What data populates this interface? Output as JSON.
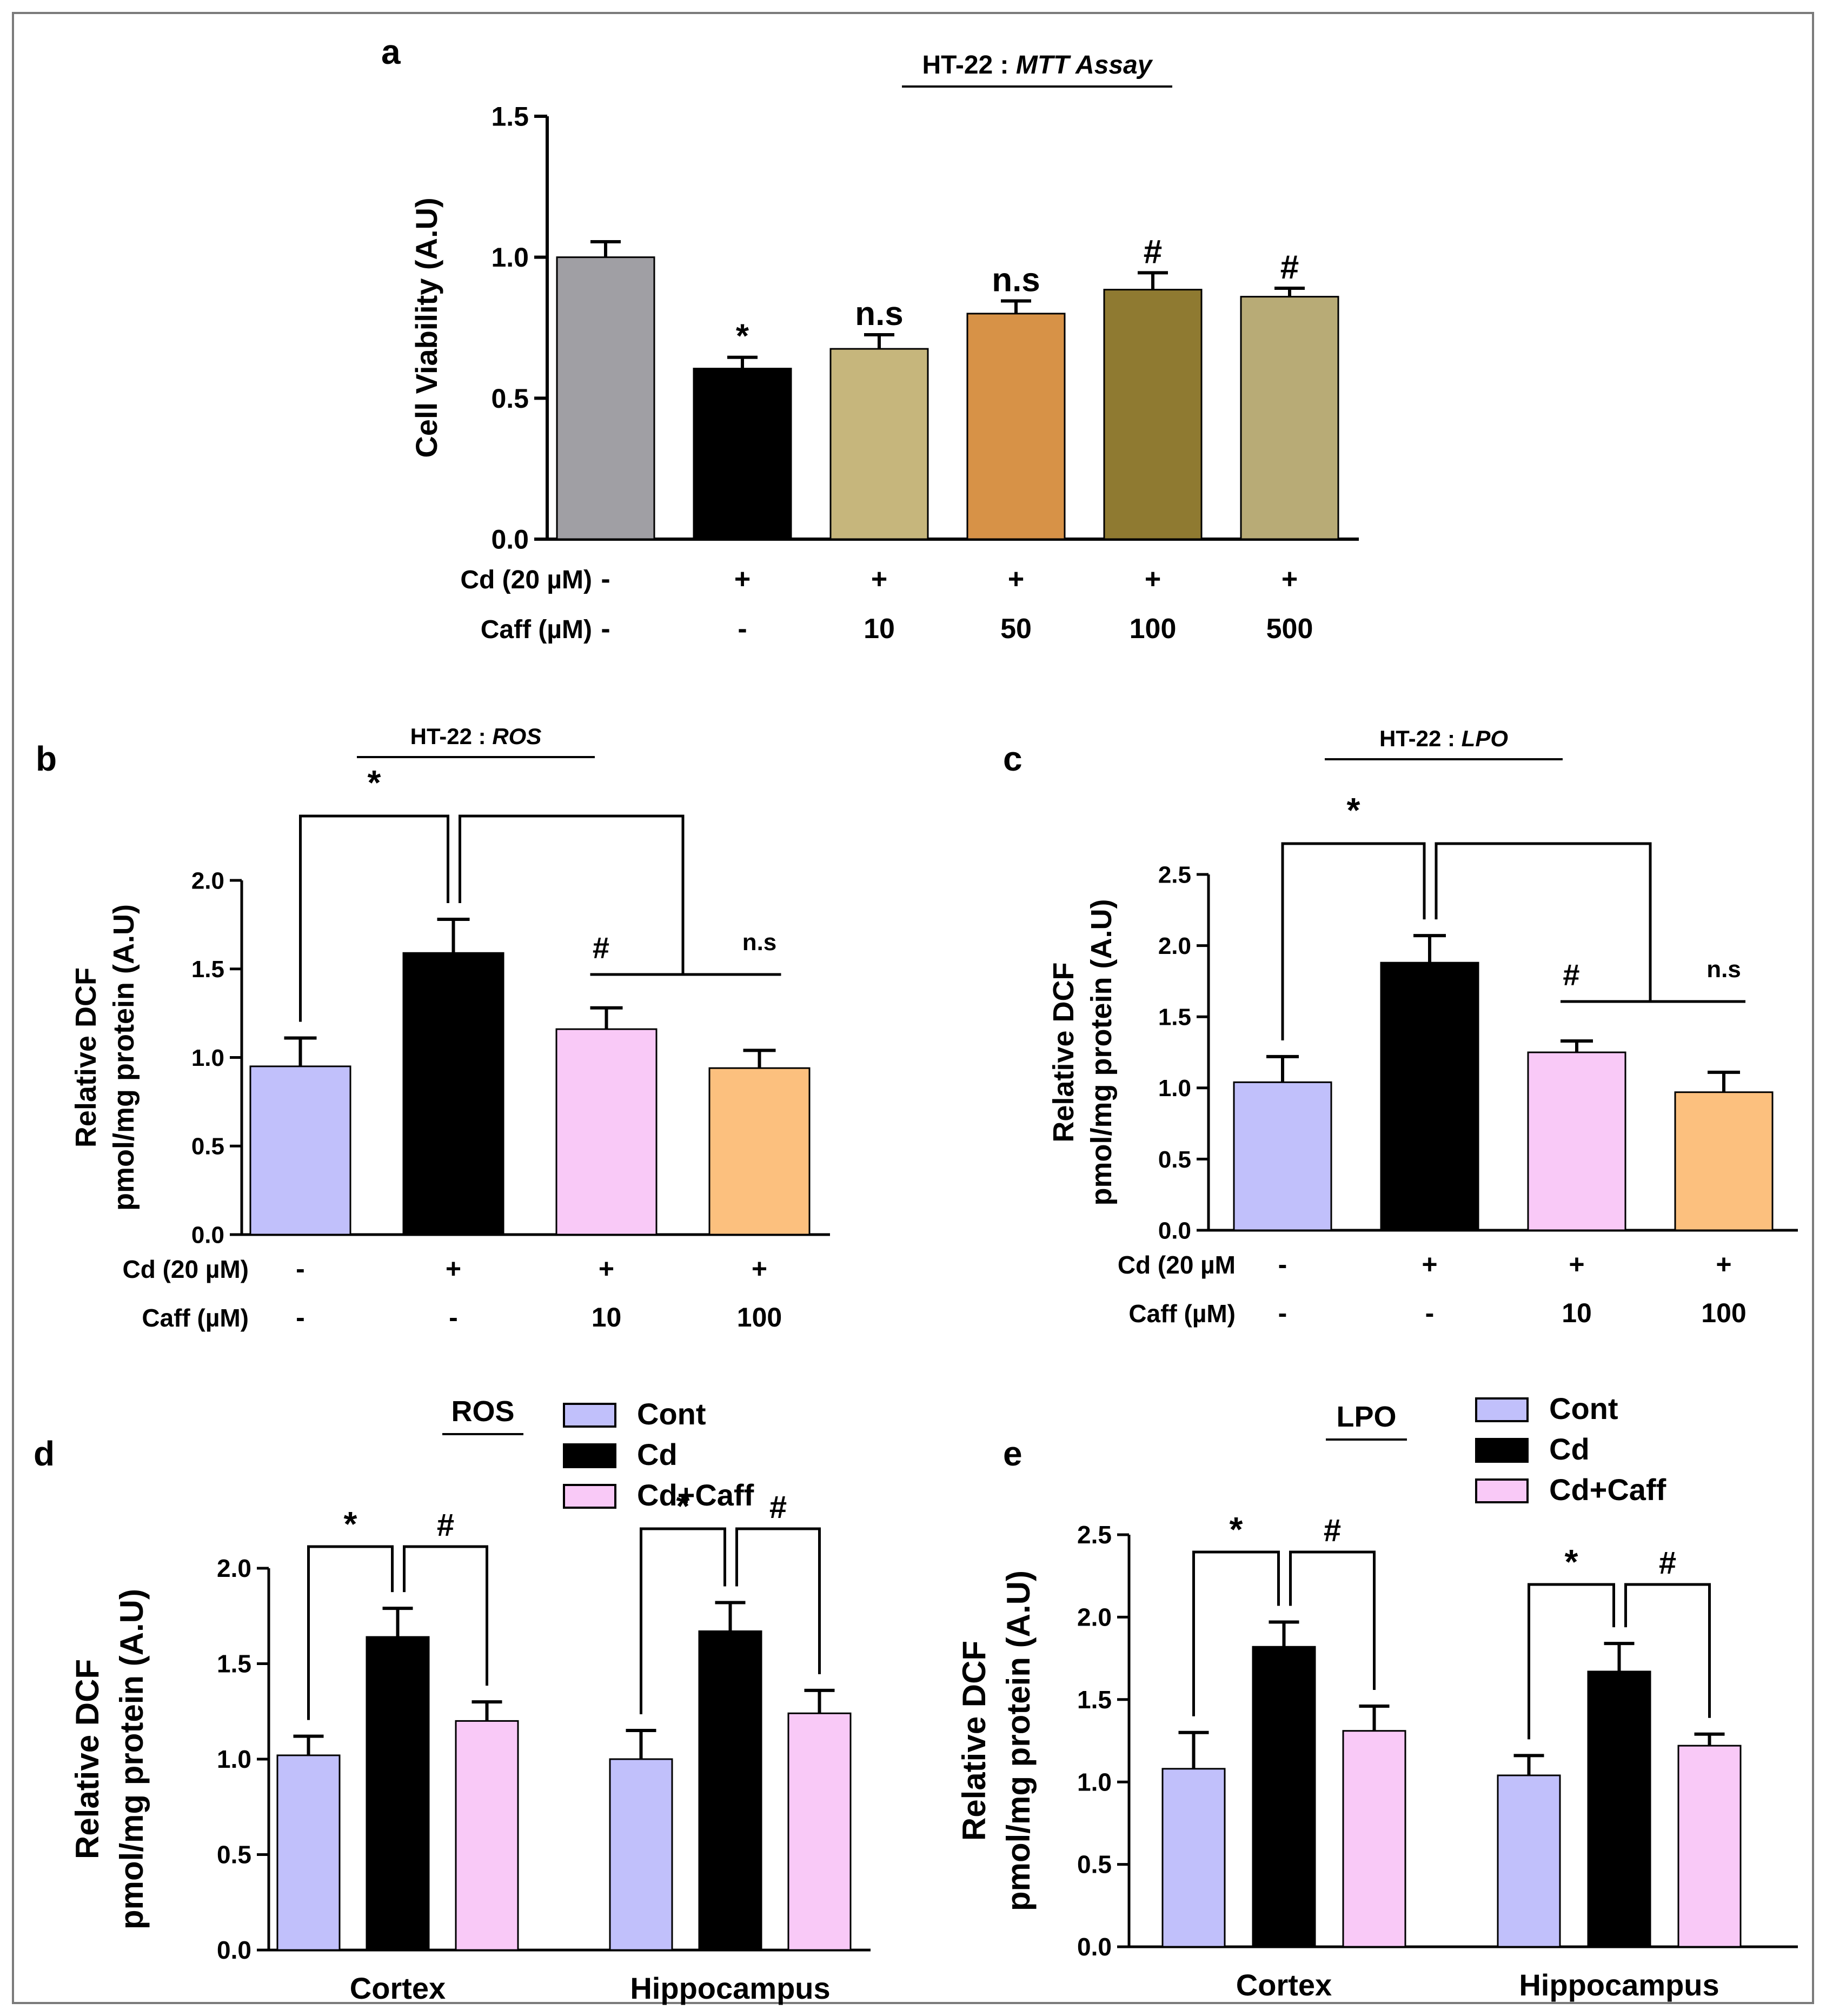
{
  "colors": {
    "gray": "#A09FA4",
    "black": "#000000",
    "khaki": "#C6B67C",
    "orange": "#D79247",
    "olive": "#8F7A31",
    "tan": "#B8AB76",
    "lavender": "#C1C0FB",
    "pink": "#F9C9F7",
    "peach": "#FCC07E"
  },
  "chart_data": [
    {
      "panel": "a",
      "type": "bar",
      "title": "HT-22 : ",
      "title_italic": "MTT Assay",
      "ylabel": "Cell Viability (A.U)",
      "ylim": [
        0,
        1.5
      ],
      "yticks": [
        "0.0",
        "0.5",
        "1.0",
        "1.5"
      ],
      "values": [
        1.0,
        0.605,
        0.675,
        0.8,
        0.885,
        0.86
      ],
      "errors": [
        0.055,
        0.04,
        0.05,
        0.045,
        0.06,
        0.03
      ],
      "colors": [
        "gray",
        "black",
        "khaki",
        "orange",
        "olive",
        "tan"
      ],
      "annotations": [
        "",
        "*",
        "n.s",
        "n.s",
        "#",
        "#"
      ],
      "cd_label": "Cd (20 µM)",
      "cd_values": [
        "-",
        "+",
        "+",
        "+",
        "+",
        "+"
      ],
      "caff_label": "Caff (µM)",
      "caff_values": [
        "-",
        "-",
        "10",
        "50",
        "100",
        "500"
      ]
    },
    {
      "panel": "b",
      "type": "bar",
      "title": "HT-22 : ",
      "title_italic": "ROS",
      "ylabel": [
        "Relative DCF",
        "pmol/mg protein (A.U)"
      ],
      "ylim": [
        0,
        2.0
      ],
      "yticks": [
        "0.0",
        "0.5",
        "1.0",
        "1.5",
        "2.0"
      ],
      "values": [
        0.95,
        1.59,
        1.16,
        0.94
      ],
      "errors": [
        0.16,
        0.19,
        0.12,
        0.1
      ],
      "colors": [
        "lavender",
        "black",
        "pink",
        "peach"
      ],
      "sig_star": "*",
      "sig_hash": "#",
      "sig_ns": "n.s",
      "cd_label": "Cd (20 µM)",
      "cd_values": [
        "-",
        "+",
        "+",
        "+"
      ],
      "caff_label": "Caff (µM)",
      "caff_values": [
        "-",
        "-",
        "10",
        "100"
      ]
    },
    {
      "panel": "c",
      "type": "bar",
      "title": "HT-22 : ",
      "title_italic": "LPO",
      "ylabel": [
        "Relative DCF",
        "pmol/mg protein (A.U)"
      ],
      "ylim": [
        0,
        2.5
      ],
      "yticks": [
        "0.0",
        "0.5",
        "1.0",
        "1.5",
        "2.0",
        "2.5"
      ],
      "values": [
        1.04,
        1.88,
        1.25,
        0.97
      ],
      "errors": [
        0.18,
        0.19,
        0.08,
        0.14
      ],
      "colors": [
        "lavender",
        "black",
        "pink",
        "peach"
      ],
      "sig_star": "*",
      "sig_hash": "#",
      "sig_ns": "n.s",
      "cd_label": "Cd (20 µM",
      "cd_values": [
        "-",
        "+",
        "+",
        "+"
      ],
      "caff_label": "Caff (µM)",
      "caff_values": [
        "-",
        "-",
        "10",
        "100"
      ]
    },
    {
      "panel": "d",
      "type": "bar",
      "title": "ROS",
      "ylabel": [
        "Relative DCF",
        "pmol/mg protein (A.U)"
      ],
      "ylim": [
        0,
        2.0
      ],
      "yticks": [
        "0.0",
        "0.5",
        "1.0",
        "1.5",
        "2.0"
      ],
      "categories": [
        "Cortex",
        "Hippocampus"
      ],
      "series": [
        {
          "name": "Cont",
          "color": "lavender",
          "values": [
            1.02,
            1.0
          ],
          "errors": [
            0.1,
            0.15
          ]
        },
        {
          "name": "Cd",
          "color": "black",
          "values": [
            1.64,
            1.67
          ],
          "errors": [
            0.15,
            0.15
          ]
        },
        {
          "name": "Cd+Caff",
          "color": "pink",
          "values": [
            1.2,
            1.24
          ],
          "errors": [
            0.1,
            0.12
          ]
        }
      ],
      "sig_star": "*",
      "sig_hash": "#"
    },
    {
      "panel": "e",
      "type": "bar",
      "title": "LPO",
      "ylabel": [
        "Relative DCF",
        "pmol/mg protein (A.U)"
      ],
      "ylim": [
        0,
        2.5
      ],
      "yticks": [
        "0.0",
        "0.5",
        "1.0",
        "1.5",
        "2.0",
        "2.5"
      ],
      "categories": [
        "Cortex",
        "Hippocampus"
      ],
      "series": [
        {
          "name": "Cont",
          "color": "lavender",
          "values": [
            1.08,
            1.04
          ],
          "errors": [
            0.22,
            0.12
          ]
        },
        {
          "name": "Cd",
          "color": "black",
          "values": [
            1.82,
            1.67
          ],
          "errors": [
            0.15,
            0.17
          ]
        },
        {
          "name": "Cd+Caff",
          "color": "pink",
          "values": [
            1.31,
            1.22
          ],
          "errors": [
            0.15,
            0.07
          ]
        }
      ],
      "sig_star": "*",
      "sig_hash": "#"
    }
  ]
}
